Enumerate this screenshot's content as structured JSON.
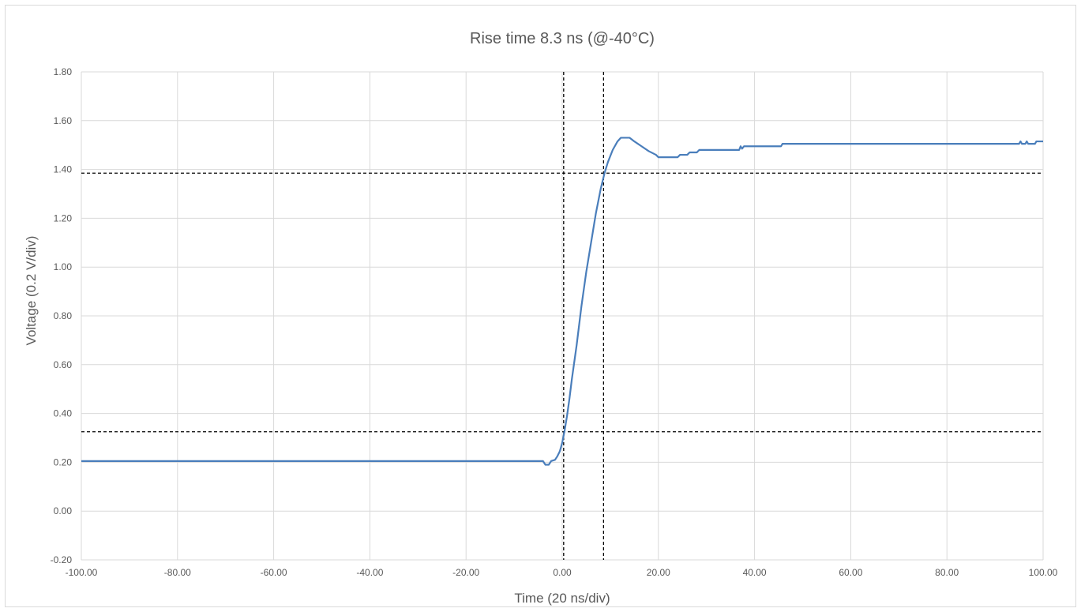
{
  "chart_data": {
    "type": "line",
    "title": "Rise time 8.3 ns (@-40°C)",
    "xlabel": "Time (20 ns/div)",
    "ylabel": "Voltage (0.2 V/div)",
    "xlim": [
      -100,
      100
    ],
    "ylim": [
      -0.2,
      1.8
    ],
    "x_ticks": [
      "-100.00",
      "-80.00",
      "-60.00",
      "-40.00",
      "-20.00",
      "0.00",
      "20.00",
      "40.00",
      "60.00",
      "80.00",
      "100.00"
    ],
    "y_ticks": [
      "-0.20",
      "0.00",
      "0.20",
      "0.40",
      "0.60",
      "0.80",
      "1.00",
      "1.20",
      "1.40",
      "1.60",
      "1.80"
    ],
    "grid": true,
    "line_color": "#4a7ebb",
    "series": [
      {
        "points": [
          [
            -100,
            0.205
          ],
          [
            -4,
            0.205
          ],
          [
            -3.5,
            0.19
          ],
          [
            -2.8,
            0.19
          ],
          [
            -2.3,
            0.205
          ],
          [
            -1.5,
            0.21
          ],
          [
            -1,
            0.225
          ],
          [
            -0.5,
            0.245
          ],
          [
            0,
            0.28
          ],
          [
            0.5,
            0.33
          ],
          [
            1,
            0.39
          ],
          [
            1.5,
            0.46
          ],
          [
            2,
            0.54
          ],
          [
            3,
            0.68
          ],
          [
            4,
            0.84
          ],
          [
            5,
            0.98
          ],
          [
            6,
            1.1
          ],
          [
            7,
            1.22
          ],
          [
            8,
            1.32
          ],
          [
            8.8,
            1.385
          ],
          [
            9.5,
            1.43
          ],
          [
            10.5,
            1.48
          ],
          [
            11.5,
            1.515
          ],
          [
            12.2,
            1.53
          ],
          [
            14,
            1.53
          ],
          [
            15,
            1.515
          ],
          [
            16.5,
            1.495
          ],
          [
            18,
            1.475
          ],
          [
            19.5,
            1.46
          ],
          [
            20,
            1.45
          ],
          [
            24,
            1.45
          ],
          [
            24.5,
            1.46
          ],
          [
            26,
            1.46
          ],
          [
            26.5,
            1.47
          ],
          [
            28,
            1.47
          ],
          [
            28.5,
            1.48
          ],
          [
            36.8,
            1.48
          ],
          [
            37.1,
            1.495
          ],
          [
            37.4,
            1.485
          ],
          [
            37.8,
            1.495
          ],
          [
            45.5,
            1.495
          ],
          [
            45.8,
            1.505
          ],
          [
            95,
            1.505
          ],
          [
            95.3,
            1.515
          ],
          [
            95.6,
            1.505
          ],
          [
            96.3,
            1.505
          ],
          [
            96.6,
            1.515
          ],
          [
            96.9,
            1.505
          ],
          [
            98.3,
            1.505
          ],
          [
            98.6,
            1.515
          ],
          [
            100,
            1.515
          ]
        ]
      }
    ],
    "reference_lines": {
      "x": [
        0.3,
        8.6
      ],
      "y": [
        0.325,
        1.385
      ]
    }
  }
}
